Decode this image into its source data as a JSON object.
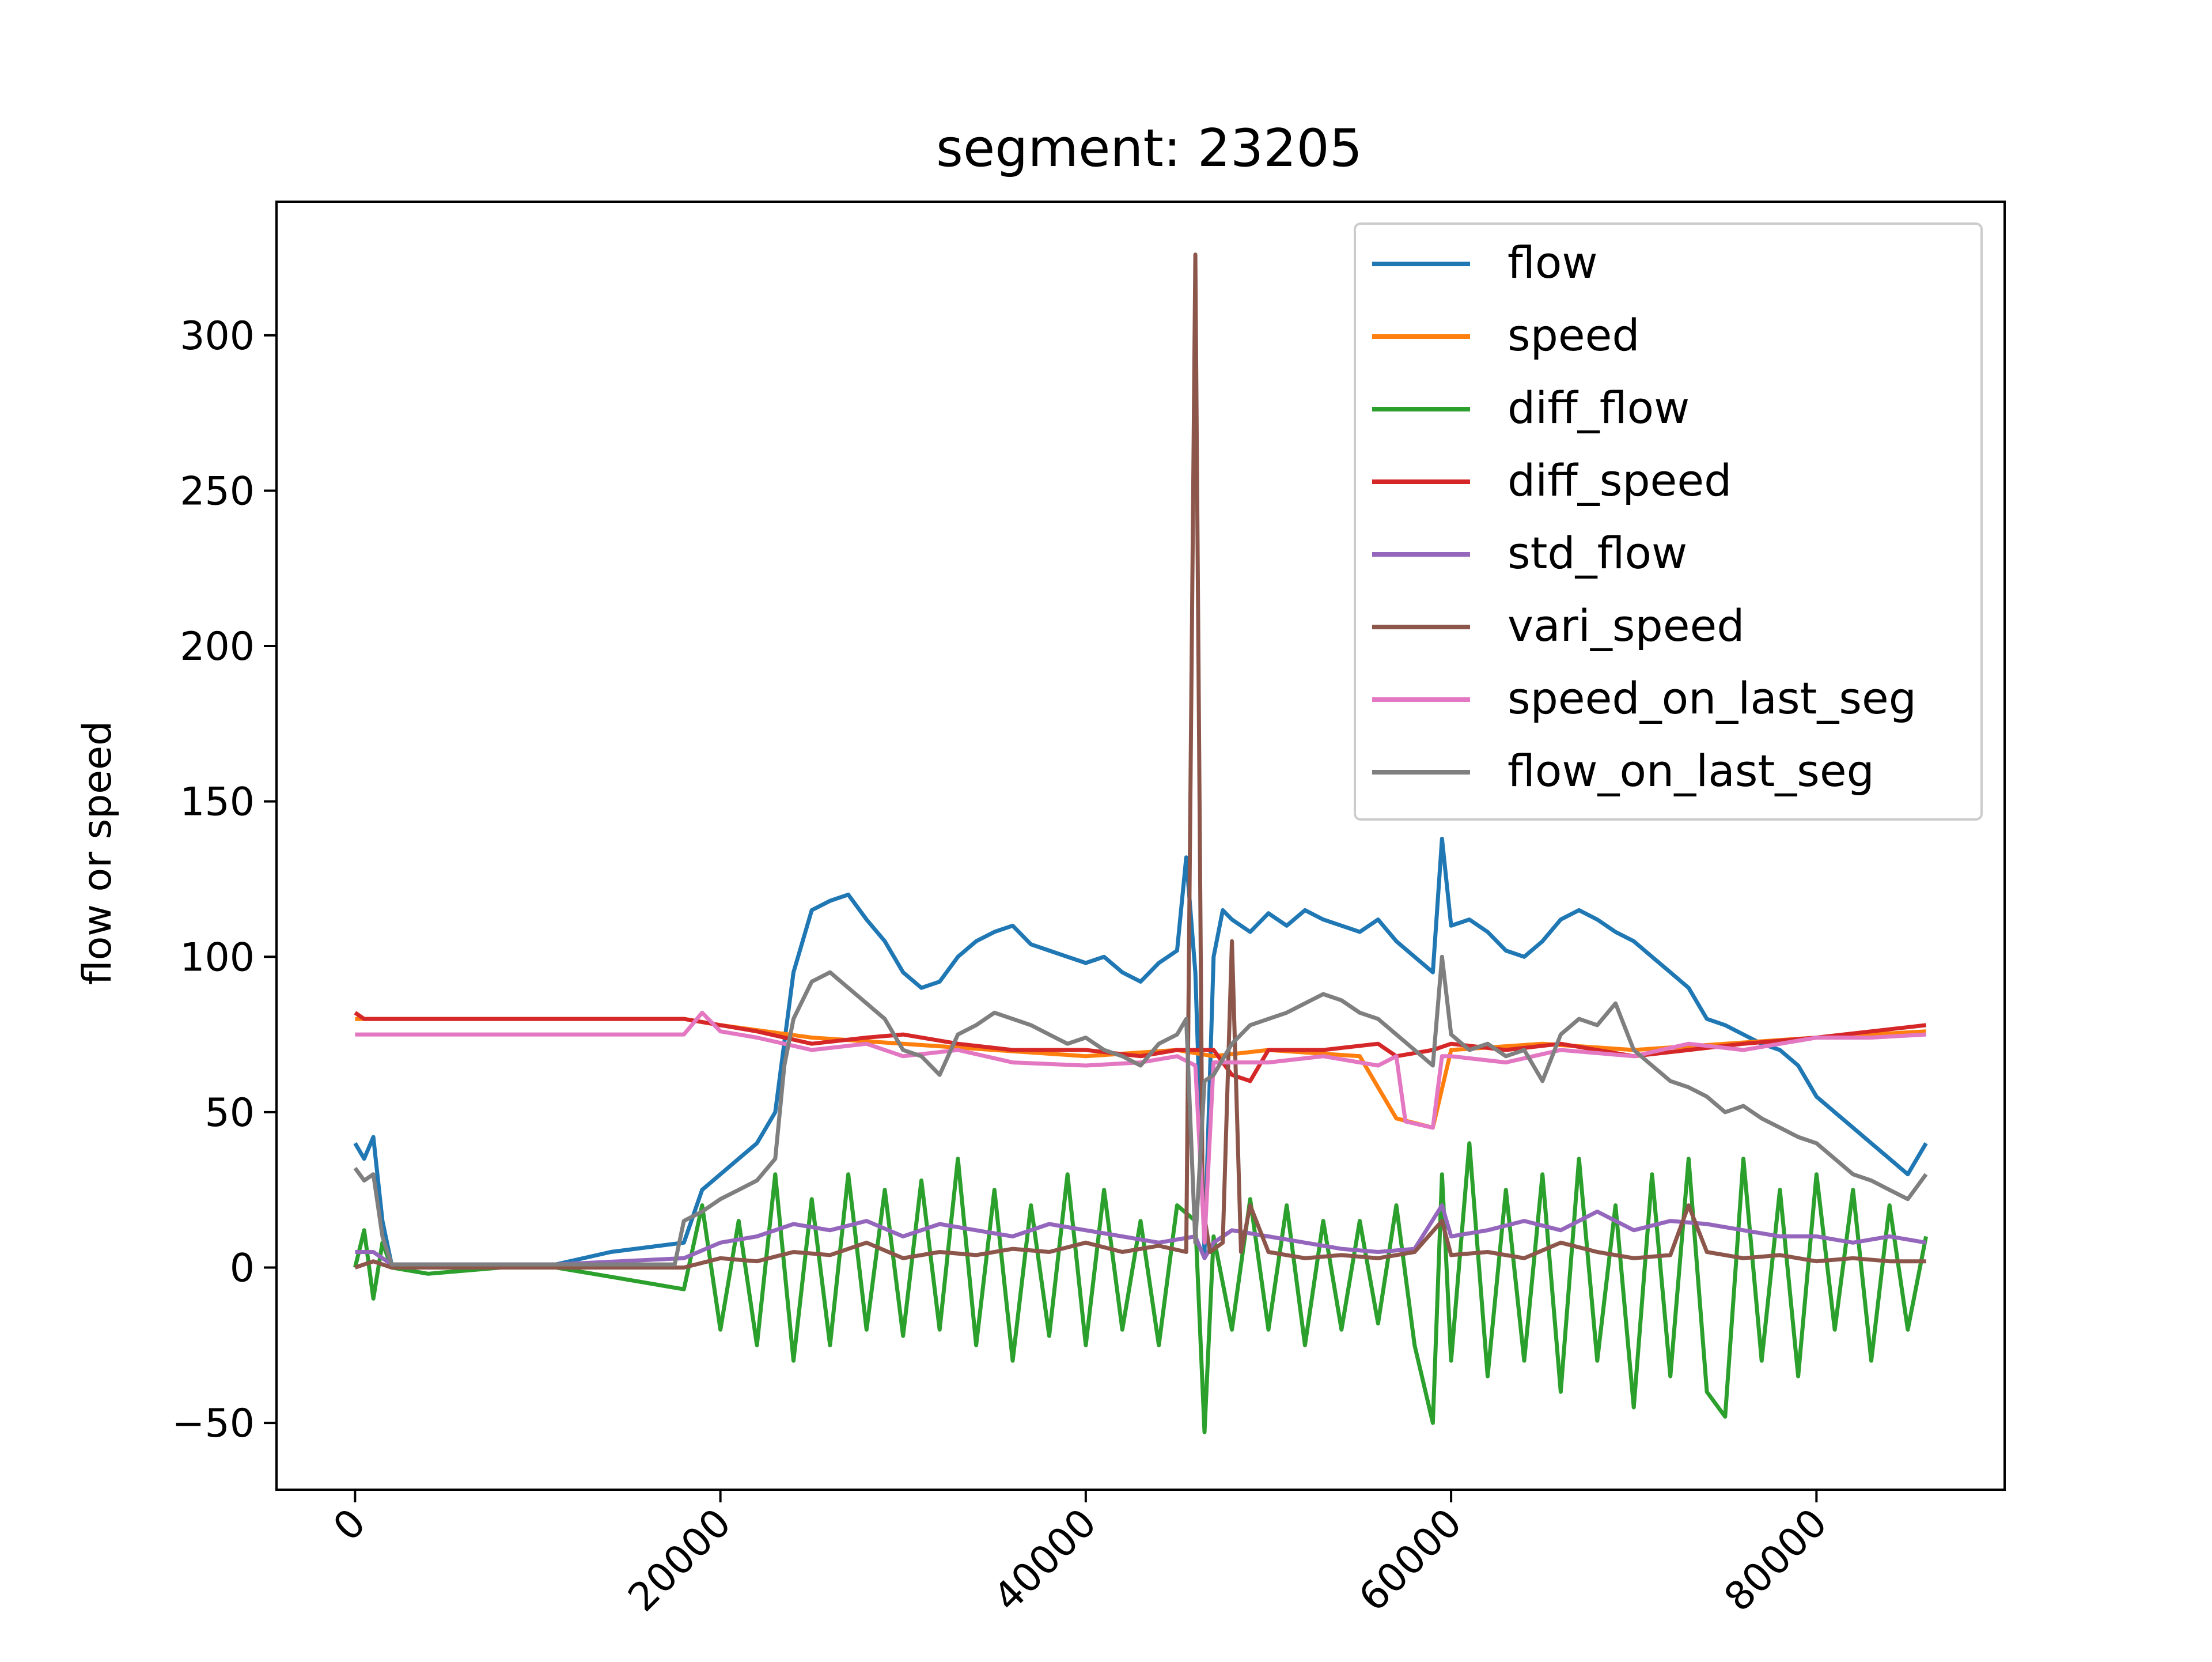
{
  "chart_data": {
    "type": "line",
    "title": "segment: 23205",
    "xlabel": "",
    "ylabel": "flow or speed",
    "xlim": [
      -4300,
      90300
    ],
    "ylim": [
      -71.5,
      343
    ],
    "x_ticks": [
      0,
      20000,
      40000,
      60000,
      80000
    ],
    "x_tick_labels": [
      "0",
      "20000",
      "40000",
      "60000",
      "80000"
    ],
    "y_ticks": [
      -50,
      0,
      50,
      100,
      150,
      200,
      250,
      300
    ],
    "y_tick_labels": [
      "−50",
      "0",
      "50",
      "100",
      "150",
      "200",
      "250",
      "300"
    ],
    "grid": false,
    "legend_position": "top-right",
    "series": [
      {
        "name": "flow",
        "color": "#1f77b4",
        "x": [
          0,
          500,
          1000,
          1500,
          2000,
          4000,
          7000,
          11000,
          14000,
          18000,
          19000,
          20000,
          21000,
          22000,
          23000,
          24000,
          25000,
          26000,
          27000,
          28000,
          29000,
          30000,
          31000,
          32000,
          33000,
          34000,
          35000,
          36000,
          37000,
          38000,
          39000,
          40000,
          41000,
          42000,
          43000,
          44000,
          45000,
          45500,
          46000,
          46500,
          47000,
          47500,
          48000,
          49000,
          50000,
          51000,
          52000,
          53000,
          54000,
          55000,
          56000,
          57000,
          58000,
          59000,
          59500,
          60000,
          61000,
          62000,
          63000,
          64000,
          65000,
          66000,
          67000,
          68000,
          69000,
          70000,
          71000,
          72000,
          73000,
          74000,
          75000,
          76000,
          77000,
          78000,
          79000,
          80000,
          81000,
          82000,
          83000,
          84000,
          85000,
          86000
        ],
        "y": [
          40,
          35,
          42,
          15,
          1,
          1,
          1,
          1,
          5,
          8,
          25,
          30,
          35,
          40,
          50,
          95,
          115,
          118,
          120,
          112,
          105,
          95,
          90,
          92,
          100,
          105,
          108,
          110,
          104,
          102,
          100,
          98,
          100,
          95,
          92,
          98,
          102,
          132,
          95,
          5,
          100,
          115,
          112,
          108,
          114,
          110,
          115,
          112,
          110,
          108,
          112,
          105,
          100,
          95,
          138,
          110,
          112,
          108,
          102,
          100,
          105,
          112,
          115,
          112,
          108,
          105,
          100,
          95,
          90,
          80,
          78,
          75,
          72,
          70,
          65,
          55,
          50,
          45,
          40,
          35,
          30,
          40
        ]
      },
      {
        "name": "speed",
        "color": "#ff7f0e",
        "x": [
          0,
          1000,
          18000,
          20000,
          25000,
          30000,
          35000,
          40000,
          45000,
          47000,
          50000,
          55000,
          57000,
          59000,
          60000,
          65000,
          70000,
          75000,
          80000,
          86000
        ],
        "y": [
          80,
          80,
          80,
          78,
          74,
          72,
          70,
          68,
          70,
          68,
          70,
          68,
          48,
          45,
          70,
          72,
          70,
          72,
          74,
          76
        ]
      },
      {
        "name": "diff_flow",
        "color": "#2ca02c",
        "x": [
          0,
          500,
          1000,
          1500,
          2000,
          4000,
          8000,
          11000,
          14000,
          18000,
          19000,
          20000,
          21000,
          22000,
          23000,
          24000,
          25000,
          26000,
          27000,
          28000,
          29000,
          30000,
          31000,
          32000,
          33000,
          34000,
          35000,
          36000,
          37000,
          38000,
          39000,
          40000,
          41000,
          42000,
          43000,
          44000,
          45000,
          46000,
          46500,
          47000,
          48000,
          49000,
          50000,
          51000,
          52000,
          53000,
          54000,
          55000,
          56000,
          57000,
          58000,
          59000,
          59500,
          60000,
          61000,
          62000,
          63000,
          64000,
          65000,
          66000,
          67000,
          68000,
          69000,
          70000,
          71000,
          72000,
          73000,
          74000,
          75000,
          76000,
          77000,
          78000,
          79000,
          80000,
          81000,
          82000,
          83000,
          84000,
          85000,
          86000
        ],
        "y": [
          0,
          12,
          -10,
          8,
          0,
          -2,
          0,
          0,
          -3,
          -7,
          20,
          -20,
          15,
          -25,
          30,
          -30,
          22,
          -25,
          30,
          -20,
          25,
          -22,
          28,
          -20,
          35,
          -25,
          25,
          -30,
          20,
          -22,
          30,
          -25,
          25,
          -20,
          15,
          -25,
          20,
          15,
          -53,
          10,
          -20,
          22,
          -20,
          20,
          -25,
          15,
          -20,
          15,
          -18,
          20,
          -25,
          -50,
          30,
          -30,
          40,
          -35,
          25,
          -30,
          30,
          -40,
          35,
          -30,
          20,
          -45,
          30,
          -35,
          35,
          -40,
          -48,
          35,
          -30,
          25,
          -35,
          30,
          -20,
          25,
          -30,
          20,
          -20,
          10
        ]
      },
      {
        "name": "diff_speed",
        "color": "#d62728",
        "x": [
          0,
          500,
          1000,
          18000,
          20000,
          22000,
          25000,
          28000,
          30000,
          33000,
          36000,
          40000,
          43000,
          45000,
          47000,
          48000,
          49000,
          50000,
          53000,
          56000,
          57000,
          59000,
          60000,
          63000,
          66000,
          70000,
          73000,
          76000,
          80000,
          83000,
          86000
        ],
        "y": [
          82,
          80,
          80,
          80,
          78,
          76,
          72,
          74,
          75,
          72,
          70,
          70,
          68,
          70,
          70,
          62,
          60,
          70,
          70,
          72,
          68,
          70,
          72,
          70,
          72,
          68,
          70,
          72,
          74,
          76,
          78
        ]
      },
      {
        "name": "std_flow",
        "color": "#9467bd",
        "x": [
          0,
          1000,
          1500,
          2000,
          4000,
          11000,
          18000,
          20000,
          22000,
          24000,
          26000,
          28000,
          30000,
          32000,
          34000,
          36000,
          38000,
          40000,
          42000,
          44000,
          46000,
          46500,
          47000,
          48000,
          50000,
          52000,
          54000,
          56000,
          58000,
          59500,
          60000,
          62000,
          64000,
          66000,
          68000,
          70000,
          72000,
          74000,
          76000,
          78000,
          80000,
          82000,
          84000,
          86000
        ],
        "y": [
          5,
          5,
          3,
          1,
          1,
          1,
          3,
          8,
          10,
          14,
          12,
          15,
          10,
          14,
          12,
          10,
          14,
          12,
          10,
          8,
          10,
          3,
          8,
          12,
          10,
          8,
          6,
          5,
          6,
          20,
          10,
          12,
          15,
          12,
          18,
          12,
          15,
          14,
          12,
          10,
          10,
          8,
          10,
          8
        ]
      },
      {
        "name": "vari_speed",
        "color": "#8c564b",
        "x": [
          0,
          1000,
          2000,
          18000,
          20000,
          22000,
          24000,
          26000,
          28000,
          30000,
          32000,
          34000,
          36000,
          38000,
          40000,
          42000,
          44000,
          45500,
          46000,
          46400,
          46800,
          47500,
          48000,
          48500,
          49000,
          50000,
          52000,
          54000,
          56000,
          58000,
          59500,
          60000,
          62000,
          64000,
          66000,
          68000,
          70000,
          72000,
          73000,
          74000,
          76000,
          78000,
          80000,
          82000,
          84000,
          86000
        ],
        "y": [
          0,
          2,
          0,
          0,
          3,
          2,
          5,
          4,
          8,
          3,
          5,
          4,
          6,
          5,
          8,
          5,
          7,
          5,
          326,
          20,
          5,
          8,
          105,
          5,
          20,
          5,
          3,
          4,
          3,
          5,
          15,
          4,
          5,
          3,
          8,
          5,
          3,
          4,
          20,
          5,
          3,
          4,
          2,
          3,
          2,
          2
        ]
      },
      {
        "name": "speed_on_last_seg",
        "color": "#e377c2",
        "x": [
          0,
          1000,
          18000,
          19000,
          20000,
          22000,
          25000,
          28000,
          30000,
          33000,
          36000,
          40000,
          43000,
          45000,
          46000,
          46500,
          47000,
          48000,
          50000,
          53000,
          56000,
          57000,
          57500,
          59000,
          59500,
          60000,
          63000,
          66000,
          70000,
          73000,
          76000,
          80000,
          83000,
          86000
        ],
        "y": [
          75,
          75,
          75,
          82,
          76,
          74,
          70,
          72,
          68,
          70,
          66,
          65,
          66,
          68,
          65,
          8,
          66,
          66,
          66,
          68,
          65,
          68,
          47,
          45,
          68,
          68,
          66,
          70,
          68,
          72,
          70,
          74,
          74,
          75
        ]
      },
      {
        "name": "flow_on_last_seg",
        "color": "#7f7f7f",
        "x": [
          0,
          500,
          1000,
          1500,
          2000,
          4000,
          8000,
          11000,
          14000,
          17500,
          18000,
          19000,
          20000,
          21000,
          22000,
          23000,
          23500,
          24000,
          25000,
          26000,
          27000,
          28000,
          29000,
          30000,
          31000,
          32000,
          33000,
          34000,
          35000,
          36000,
          37000,
          38000,
          39000,
          40000,
          41000,
          42000,
          43000,
          44000,
          45000,
          45500,
          46000,
          46500,
          47000,
          48000,
          49000,
          50000,
          51000,
          52000,
          53000,
          54000,
          55000,
          56000,
          57000,
          58000,
          59000,
          59500,
          60000,
          61000,
          62000,
          63000,
          64000,
          65000,
          66000,
          67000,
          68000,
          69000,
          70000,
          71000,
          72000,
          73000,
          74000,
          75000,
          76000,
          77000,
          78000,
          79000,
          80000,
          81000,
          82000,
          83000,
          84000,
          85000,
          86000
        ],
        "y": [
          32,
          28,
          30,
          10,
          1,
          1,
          1,
          1,
          1,
          1,
          15,
          18,
          22,
          25,
          28,
          35,
          65,
          80,
          92,
          95,
          90,
          85,
          80,
          70,
          68,
          62,
          75,
          78,
          82,
          80,
          78,
          75,
          72,
          74,
          70,
          68,
          65,
          72,
          75,
          80,
          8,
          60,
          62,
          72,
          78,
          80,
          82,
          85,
          88,
          86,
          82,
          80,
          75,
          70,
          65,
          100,
          75,
          70,
          72,
          68,
          70,
          60,
          75,
          80,
          78,
          85,
          70,
          65,
          60,
          58,
          55,
          50,
          52,
          48,
          45,
          42,
          40,
          35,
          30,
          28,
          25,
          22,
          30
        ]
      }
    ]
  }
}
